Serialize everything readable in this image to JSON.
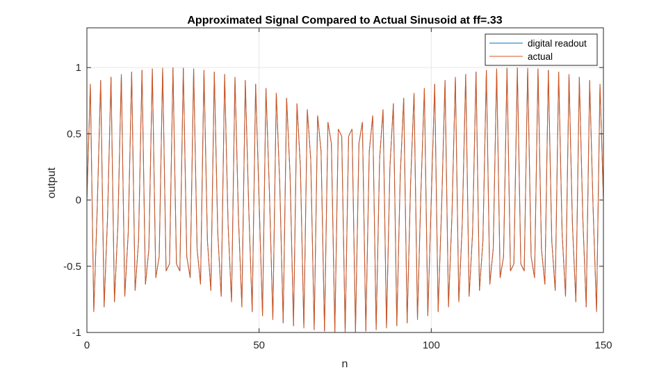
{
  "colors": {
    "digital_readout": "#0072BD",
    "actual": "#D95319",
    "grid": "#e6e6e6",
    "axis": "#262626",
    "background": "#ffffff"
  },
  "chart_data": {
    "type": "line",
    "title": "Approximated Signal Compared to Actual Sinusoid at ff=.33",
    "xlabel": "n",
    "ylabel": "output",
    "xlim": [
      0,
      150
    ],
    "ylim": [
      -1,
      1.3
    ],
    "xticks": [
      0,
      50,
      100,
      150
    ],
    "xtick_labels": [
      "0",
      "50",
      "100",
      "150"
    ],
    "yticks": [
      -1,
      -0.5,
      0,
      0.5,
      1
    ],
    "ytick_labels": [
      "-1",
      "-0.5",
      "0",
      "0.5",
      "1"
    ],
    "grid": true,
    "legend": {
      "location": "top-right",
      "entries": [
        "digital readout",
        "actual"
      ]
    },
    "series": [
      {
        "name": "digital readout",
        "color": "#0072BD",
        "formula": "y = sin(2*pi*0.33*n)",
        "x_start": 0,
        "x_end": 150,
        "x_step": 1
      },
      {
        "name": "actual",
        "color": "#D95319",
        "formula": "y = sin(2*pi*0.33*n)",
        "x_start": 0,
        "x_end": 150,
        "x_step": 1
      }
    ]
  }
}
